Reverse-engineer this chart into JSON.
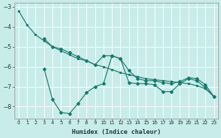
{
  "xlabel": "Humidex (Indice chaleur)",
  "background_color": "#c8ecea",
  "grid_color": "#ffffff",
  "line_color": "#1a7a6e",
  "xlim": [
    -0.5,
    23.5
  ],
  "ylim": [
    -8.6,
    -2.8
  ],
  "yticks": [
    -8,
    -7,
    -6,
    -5,
    -4,
    -3
  ],
  "xticks": [
    0,
    1,
    2,
    3,
    4,
    5,
    6,
    7,
    8,
    9,
    10,
    11,
    12,
    13,
    14,
    15,
    16,
    17,
    18,
    19,
    20,
    21,
    22,
    23
  ],
  "line1_x": [
    0,
    1,
    2,
    3,
    4,
    5,
    6,
    7,
    8,
    9,
    10,
    11,
    12,
    13,
    14,
    15,
    16,
    17,
    18,
    19,
    20,
    21,
    22,
    23
  ],
  "line1_y": [
    -3.2,
    -3.9,
    -4.4,
    -4.7,
    -5.0,
    -5.2,
    -5.4,
    -5.6,
    -5.7,
    -5.9,
    -6.0,
    -6.15,
    -6.3,
    -6.4,
    -6.5,
    -6.6,
    -6.65,
    -6.7,
    -6.75,
    -6.8,
    -6.85,
    -6.95,
    -7.1,
    -7.5
  ],
  "line2_x": [
    3,
    4,
    5,
    6,
    7,
    8,
    9,
    10,
    11,
    12,
    13,
    14,
    15,
    16,
    17,
    18,
    19,
    20,
    21,
    22,
    23
  ],
  "line2_y": [
    -4.6,
    -5.0,
    -5.1,
    -5.3,
    -5.5,
    -5.7,
    -5.9,
    -5.45,
    -5.45,
    -5.6,
    -6.2,
    -6.6,
    -6.7,
    -6.7,
    -6.8,
    -6.85,
    -6.75,
    -6.55,
    -6.6,
    -6.9,
    -7.5
  ],
  "line3_x": [
    3,
    4,
    5,
    6,
    7,
    8,
    9,
    10,
    11,
    12,
    13,
    14,
    15,
    16,
    17,
    18,
    19,
    20,
    21,
    22,
    23
  ],
  "line3_y": [
    -6.1,
    -7.65,
    -8.3,
    -8.35,
    -7.85,
    -7.3,
    -7.0,
    -6.85,
    -5.45,
    -5.6,
    -6.8,
    -6.85,
    -6.85,
    -6.9,
    -7.25,
    -7.25,
    -6.85,
    -6.6,
    -6.7,
    -7.05,
    -7.5
  ]
}
